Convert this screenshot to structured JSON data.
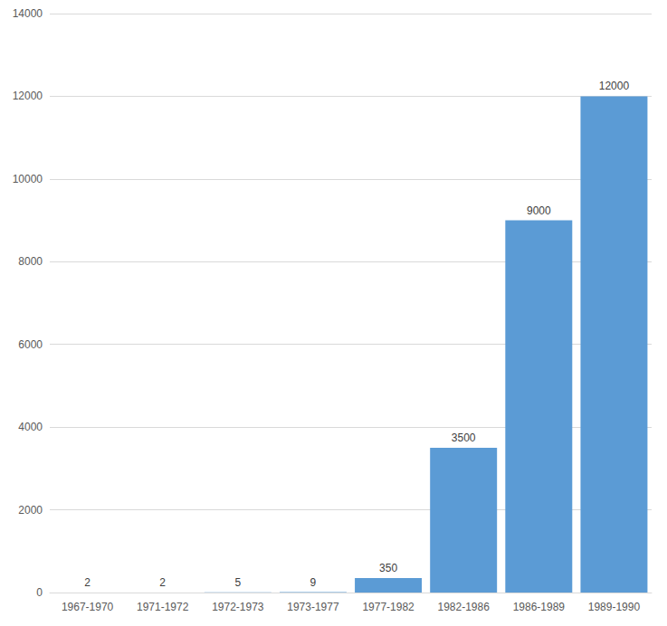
{
  "chart_data": {
    "type": "bar",
    "categories": [
      "1967-1970",
      "1971-1972",
      "1972-1973",
      "1973-1977",
      "1977-1982",
      "1982-1986",
      "1986-1989",
      "1989-1990"
    ],
    "values": [
      2,
      2,
      5,
      9,
      350,
      3500,
      9000,
      12000
    ],
    "color": "#5b9bd5",
    "ylim": [
      0,
      14000
    ],
    "yticks": [
      0,
      2000,
      4000,
      6000,
      8000,
      10000,
      12000,
      14000
    ],
    "grid": true,
    "data_labels": true
  }
}
